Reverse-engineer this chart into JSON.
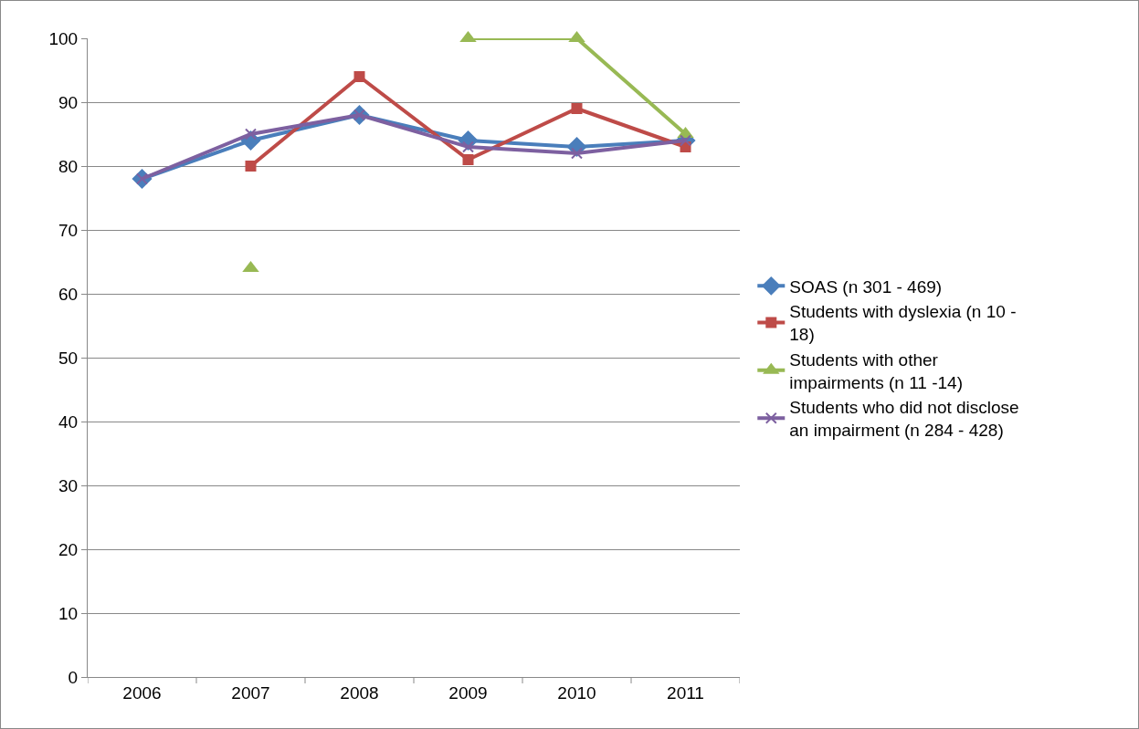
{
  "chart_data": {
    "type": "line",
    "categories": [
      "2006",
      "2007",
      "2008",
      "2009",
      "2010",
      "2011"
    ],
    "series": [
      {
        "name": "SOAS (n 301 - 469)",
        "color": "#4a7ebb",
        "marker": "diamond",
        "values": [
          78,
          84,
          88,
          84,
          83,
          84
        ]
      },
      {
        "name": "Students with dyslexia (n 10 - 18)",
        "color": "#be4b48",
        "marker": "square",
        "values": [
          null,
          80,
          94,
          81,
          89,
          83
        ]
      },
      {
        "name": "Students with other impairments (n 11 -14)",
        "color": "#98b954",
        "marker": "triangle",
        "values": [
          null,
          64,
          null,
          100,
          100,
          85
        ]
      },
      {
        "name": "Students who did not disclose an impairment (n 284 - 428)",
        "color": "#7d60a0",
        "marker": "cross",
        "values": [
          78,
          85,
          88,
          83,
          82,
          84
        ]
      }
    ],
    "ylim": [
      0,
      100
    ],
    "yticks": [
      0,
      10,
      20,
      30,
      40,
      50,
      60,
      70,
      80,
      90,
      100
    ],
    "grid": "y",
    "legend": "right",
    "line_style": "solid"
  }
}
